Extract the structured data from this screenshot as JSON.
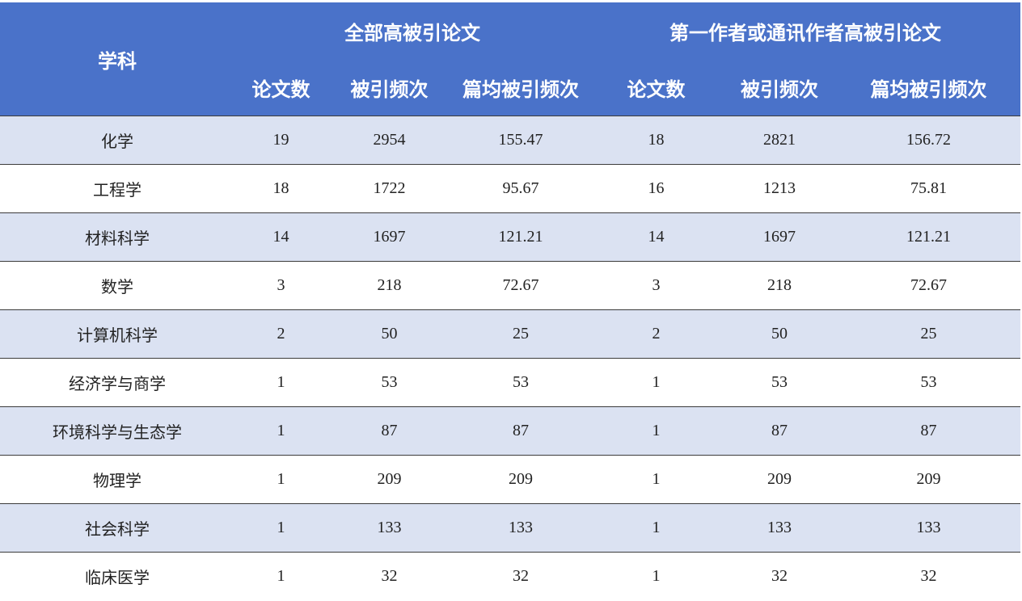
{
  "header": {
    "subject": "学科",
    "groups": [
      "全部高被引论文",
      "第一作者或通讯作者高被引论文"
    ],
    "columns": [
      "论文数",
      "被引频次",
      "篇均被引频次",
      "论文数",
      "被引频次",
      "篇均被引频次"
    ]
  },
  "table": {
    "rows": [
      {
        "subject": "化学",
        "values": [
          19,
          2954,
          155.47,
          18,
          2821,
          156.72
        ]
      },
      {
        "subject": "工程学",
        "values": [
          18,
          1722,
          95.67,
          16,
          1213,
          75.81
        ]
      },
      {
        "subject": "材料科学",
        "values": [
          14,
          1697,
          121.21,
          14,
          1697,
          121.21
        ]
      },
      {
        "subject": "数学",
        "values": [
          3,
          218,
          72.67,
          3,
          218,
          72.67
        ]
      },
      {
        "subject": "计算机科学",
        "values": [
          2,
          50,
          25,
          2,
          50,
          25
        ]
      },
      {
        "subject": "经济学与商学",
        "values": [
          1,
          53,
          53,
          1,
          53,
          53
        ]
      },
      {
        "subject": "环境科学与生态学",
        "values": [
          1,
          87,
          87,
          1,
          87,
          87
        ]
      },
      {
        "subject": "物理学",
        "values": [
          1,
          209,
          209,
          1,
          209,
          209
        ]
      },
      {
        "subject": "社会科学",
        "values": [
          1,
          133,
          133,
          1,
          133,
          133
        ]
      },
      {
        "subject": "临床医学",
        "values": [
          1,
          32,
          32,
          1,
          32,
          32
        ]
      }
    ]
  }
}
